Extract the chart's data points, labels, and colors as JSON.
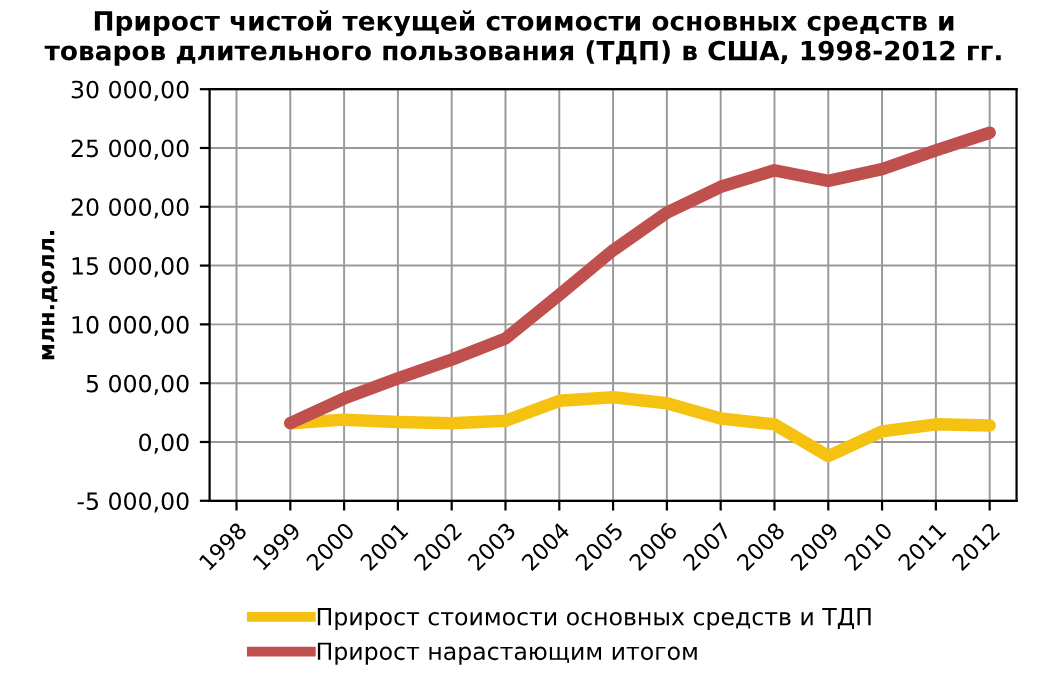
{
  "chart_data": {
    "type": "line",
    "title": "Прирост чистой текущей стоимости основных средств и\nтоваров длительного пользования (ТДП) в США, 1998-2012 гг.",
    "ylabel": "млн.долл.",
    "categories": [
      "1998",
      "1999",
      "2000",
      "2001",
      "2002",
      "2003",
      "2004",
      "2005",
      "2006",
      "2007",
      "2008",
      "2009",
      "2010",
      "2011",
      "2012"
    ],
    "series": [
      {
        "name": "Прирост стоимости основных средств и ТДП",
        "color": "#f5c211",
        "values": [
          null,
          1600,
          1900,
          1700,
          1600,
          1800,
          3500,
          3800,
          3300,
          2000,
          1500,
          -1200,
          900,
          1500,
          1400
        ]
      },
      {
        "name": "Прирост нарастающим итогом",
        "color": "#c0504d",
        "values": [
          null,
          1600,
          3700,
          5400,
          7000,
          8800,
          12500,
          16300,
          19500,
          21700,
          23100,
          22200,
          23200,
          24800,
          26300
        ]
      }
    ],
    "ylim": [
      -5000,
      30000
    ],
    "yticks": [
      {
        "value": -5000,
        "label": "-5 000,00"
      },
      {
        "value": 0,
        "label": "0,00"
      },
      {
        "value": 5000,
        "label": "5 000,00"
      },
      {
        "value": 10000,
        "label": "10 000,00"
      },
      {
        "value": 15000,
        "label": "15 000,00"
      },
      {
        "value": 20000,
        "label": "20 000,00"
      },
      {
        "value": 25000,
        "label": "25 000,00"
      },
      {
        "value": 30000,
        "label": "30 000,00"
      }
    ],
    "grid": true,
    "legend": "bottom",
    "line_style": "solid",
    "marker": "none"
  }
}
